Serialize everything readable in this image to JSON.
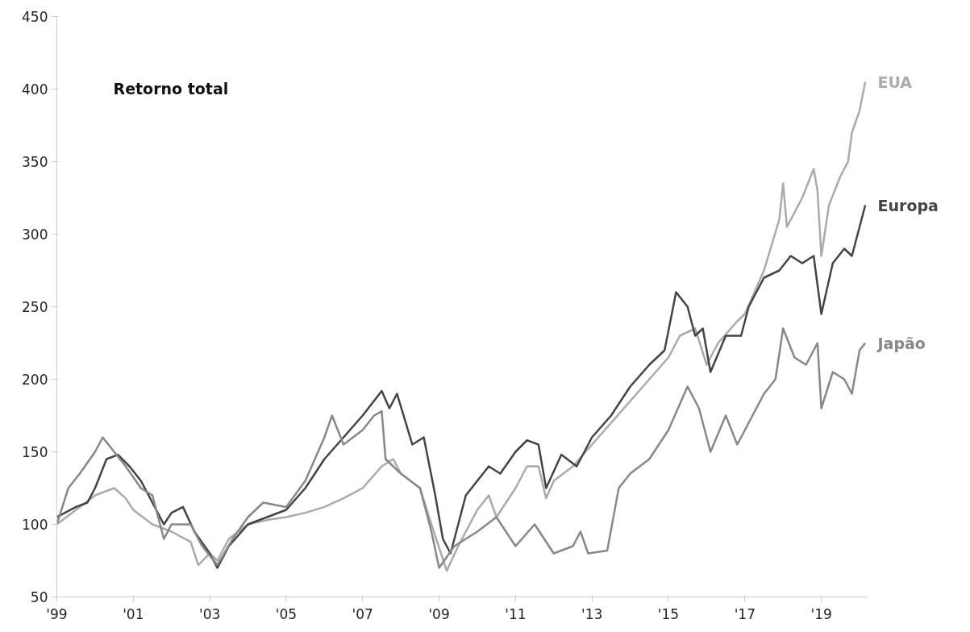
{
  "chart_data": {
    "type": "line",
    "title": "Retorno total",
    "xlim": [
      1999,
      2020.2
    ],
    "ylim": [
      50,
      450
    ],
    "xticks": [
      {
        "value": 1999,
        "label": "'99"
      },
      {
        "value": 2001,
        "label": "'01"
      },
      {
        "value": 2003,
        "label": "'03"
      },
      {
        "value": 2005,
        "label": "'05"
      },
      {
        "value": 2007,
        "label": "'07"
      },
      {
        "value": 2009,
        "label": "'09"
      },
      {
        "value": 2011,
        "label": "'11"
      },
      {
        "value": 2013,
        "label": "'13"
      },
      {
        "value": 2015,
        "label": "'15"
      },
      {
        "value": 2017,
        "label": "'17"
      },
      {
        "value": 2019,
        "label": "'19"
      }
    ],
    "yticks": [
      50,
      100,
      150,
      200,
      250,
      300,
      350,
      400,
      450
    ],
    "grid": false,
    "line_style": "solid",
    "marker": "none",
    "series": [
      {
        "name": "EUA",
        "color": "#aaaaaa",
        "x": [
          1999.0,
          1999.5,
          2000.0,
          2000.5,
          2000.8,
          2001.0,
          2001.5,
          2002.0,
          2002.5,
          2002.7,
          2003.0,
          2003.2,
          2003.5,
          2004.0,
          2004.5,
          2005.0,
          2005.5,
          2006.0,
          2006.5,
          2007.0,
          2007.5,
          2007.8,
          2008.0,
          2008.5,
          2008.8,
          2009.2,
          2009.5,
          2010.0,
          2010.3,
          2010.5,
          2011.0,
          2011.3,
          2011.6,
          2011.8,
          2012.0,
          2012.5,
          2013.0,
          2013.5,
          2014.0,
          2014.5,
          2015.0,
          2015.3,
          2015.7,
          2016.0,
          2016.3,
          2016.8,
          2017.0,
          2017.5,
          2017.9,
          2018.0,
          2018.1,
          2018.5,
          2018.8,
          2018.9,
          2019.0,
          2019.2,
          2019.5,
          2019.7,
          2019.8,
          2020.0,
          2020.15
        ],
        "values": [
          100,
          110,
          120,
          125,
          118,
          110,
          100,
          95,
          88,
          72,
          80,
          75,
          90,
          100,
          103,
          105,
          108,
          112,
          118,
          125,
          140,
          145,
          135,
          125,
          100,
          68,
          85,
          110,
          120,
          105,
          125,
          140,
          140,
          118,
          130,
          140,
          155,
          170,
          185,
          200,
          215,
          230,
          235,
          210,
          225,
          240,
          245,
          275,
          310,
          335,
          305,
          325,
          345,
          330,
          285,
          320,
          340,
          350,
          370,
          385,
          405
        ]
      },
      {
        "name": "Europa",
        "color": "#444444",
        "x": [
          1999.0,
          1999.5,
          1999.8,
          2000.0,
          2000.3,
          2000.6,
          2000.9,
          2001.2,
          2001.5,
          2001.8,
          2002.0,
          2002.3,
          2002.6,
          2003.0,
          2003.2,
          2003.5,
          2004.0,
          2004.5,
          2005.0,
          2005.5,
          2006.0,
          2006.5,
          2007.0,
          2007.5,
          2007.7,
          2007.9,
          2008.3,
          2008.6,
          2008.9,
          2009.1,
          2009.3,
          2009.7,
          2010.0,
          2010.3,
          2010.6,
          2011.0,
          2011.3,
          2011.6,
          2011.8,
          2012.2,
          2012.6,
          2013.0,
          2013.5,
          2014.0,
          2014.5,
          2014.9,
          2015.2,
          2015.5,
          2015.7,
          2015.9,
          2016.1,
          2016.5,
          2016.9,
          2017.1,
          2017.5,
          2017.9,
          2018.2,
          2018.5,
          2018.8,
          2019.0,
          2019.3,
          2019.6,
          2019.8,
          2020.0,
          2020.15
        ],
        "values": [
          105,
          112,
          115,
          125,
          145,
          148,
          140,
          130,
          115,
          100,
          108,
          112,
          95,
          80,
          70,
          85,
          100,
          105,
          110,
          125,
          145,
          160,
          175,
          192,
          180,
          190,
          155,
          160,
          120,
          90,
          80,
          120,
          130,
          140,
          135,
          150,
          158,
          155,
          125,
          148,
          140,
          160,
          175,
          195,
          210,
          220,
          260,
          250,
          230,
          235,
          205,
          230,
          230,
          250,
          270,
          275,
          285,
          280,
          285,
          245,
          280,
          290,
          285,
          305,
          320
        ]
      },
      {
        "name": "Japão",
        "color": "#888888",
        "x": [
          1999.0,
          1999.3,
          1999.6,
          2000.0,
          2000.2,
          2000.5,
          2000.8,
          2001.2,
          2001.5,
          2001.8,
          2002.0,
          2002.5,
          2002.8,
          2003.2,
          2003.6,
          2004.0,
          2004.4,
          2005.0,
          2005.5,
          2006.0,
          2006.2,
          2006.5,
          2007.0,
          2007.3,
          2007.5,
          2007.6,
          2008.0,
          2008.5,
          2008.8,
          2009.0,
          2009.4,
          2010.0,
          2010.5,
          2011.0,
          2011.5,
          2012.0,
          2012.5,
          2012.7,
          2012.9,
          2013.4,
          2013.7,
          2014.0,
          2014.5,
          2015.0,
          2015.5,
          2015.8,
          2016.1,
          2016.5,
          2016.8,
          2017.0,
          2017.5,
          2017.8,
          2018.0,
          2018.3,
          2018.6,
          2018.9,
          2019.0,
          2019.3,
          2019.6,
          2019.8,
          2020.0,
          2020.15
        ],
        "values": [
          100,
          125,
          135,
          150,
          160,
          150,
          140,
          125,
          120,
          90,
          100,
          100,
          85,
          72,
          90,
          105,
          115,
          112,
          130,
          160,
          175,
          155,
          165,
          175,
          178,
          145,
          135,
          125,
          95,
          70,
          85,
          95,
          105,
          85,
          100,
          80,
          85,
          95,
          80,
          82,
          125,
          135,
          145,
          165,
          195,
          180,
          150,
          175,
          155,
          165,
          190,
          200,
          235,
          215,
          210,
          225,
          180,
          205,
          200,
          190,
          220,
          225
        ]
      }
    ]
  }
}
